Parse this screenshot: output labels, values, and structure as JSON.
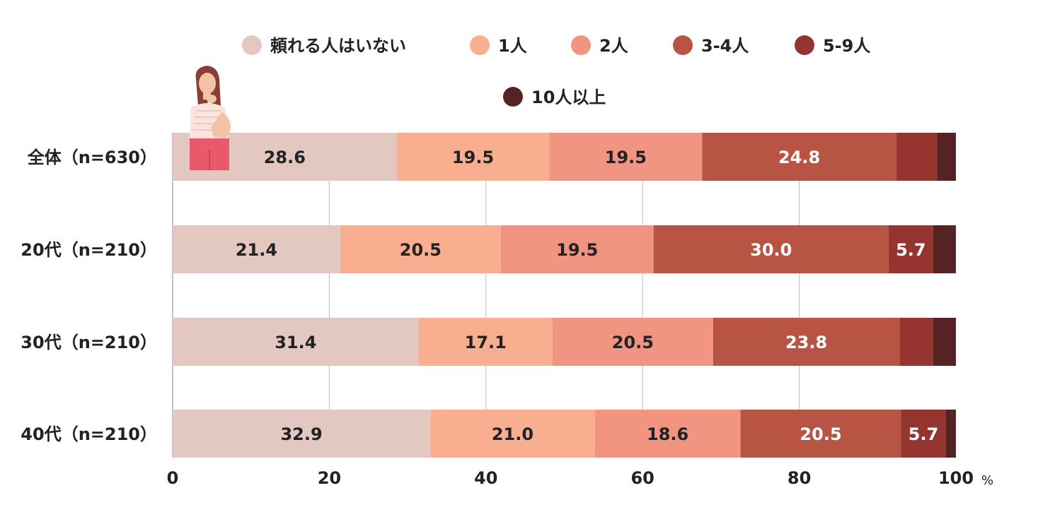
{
  "chart_data": {
    "type": "bar",
    "orientation": "horizontal",
    "stacked": true,
    "categories": [
      "全体（n=630）",
      "20代（n=210）",
      "30代（n=210）",
      "40代（n=210）"
    ],
    "series": [
      {
        "name": "頼れる人はいない",
        "color": "#e2c8c0",
        "text_color": "#222222",
        "values": [
          28.6,
          21.4,
          31.4,
          32.9
        ]
      },
      {
        "name": "1人",
        "color": "#f9ae8f",
        "text_color": "#222222",
        "values": [
          19.5,
          20.5,
          17.1,
          21.0
        ]
      },
      {
        "name": "2人",
        "color": "#f19482",
        "text_color": "#222222",
        "values": [
          19.5,
          19.5,
          20.5,
          18.6
        ]
      },
      {
        "name": "3-4人",
        "color": "#b85444",
        "text_color": "#ffffff",
        "values": [
          24.8,
          30.0,
          23.8,
          20.5
        ]
      },
      {
        "name": "5-9人",
        "color": "#963530",
        "text_color": "#ffffff",
        "values": [
          5.2,
          5.7,
          4.3,
          5.7
        ]
      },
      {
        "name": "10人以上",
        "color": "#552324",
        "text_color": "#ffffff",
        "values": [
          2.4,
          2.9,
          2.9,
          1.3
        ]
      }
    ],
    "shown_labels": [
      [
        "28.6",
        "21.4",
        "31.4",
        "32.9"
      ],
      [
        "19.5",
        "20.5",
        "17.1",
        "21.0"
      ],
      [
        "19.5",
        "19.5",
        "20.5",
        "18.6"
      ],
      [
        "24.8",
        "30.0",
        "23.8",
        "20.5"
      ],
      [
        "",
        "5.7",
        "",
        "5.7"
      ],
      [
        "",
        "",
        "",
        ""
      ]
    ],
    "x_ticks": [
      "0",
      "20",
      "40",
      "60",
      "80",
      "100"
    ],
    "x_unit": "%",
    "xlim": [
      0,
      100
    ],
    "grid": true,
    "legend_position": "top"
  }
}
